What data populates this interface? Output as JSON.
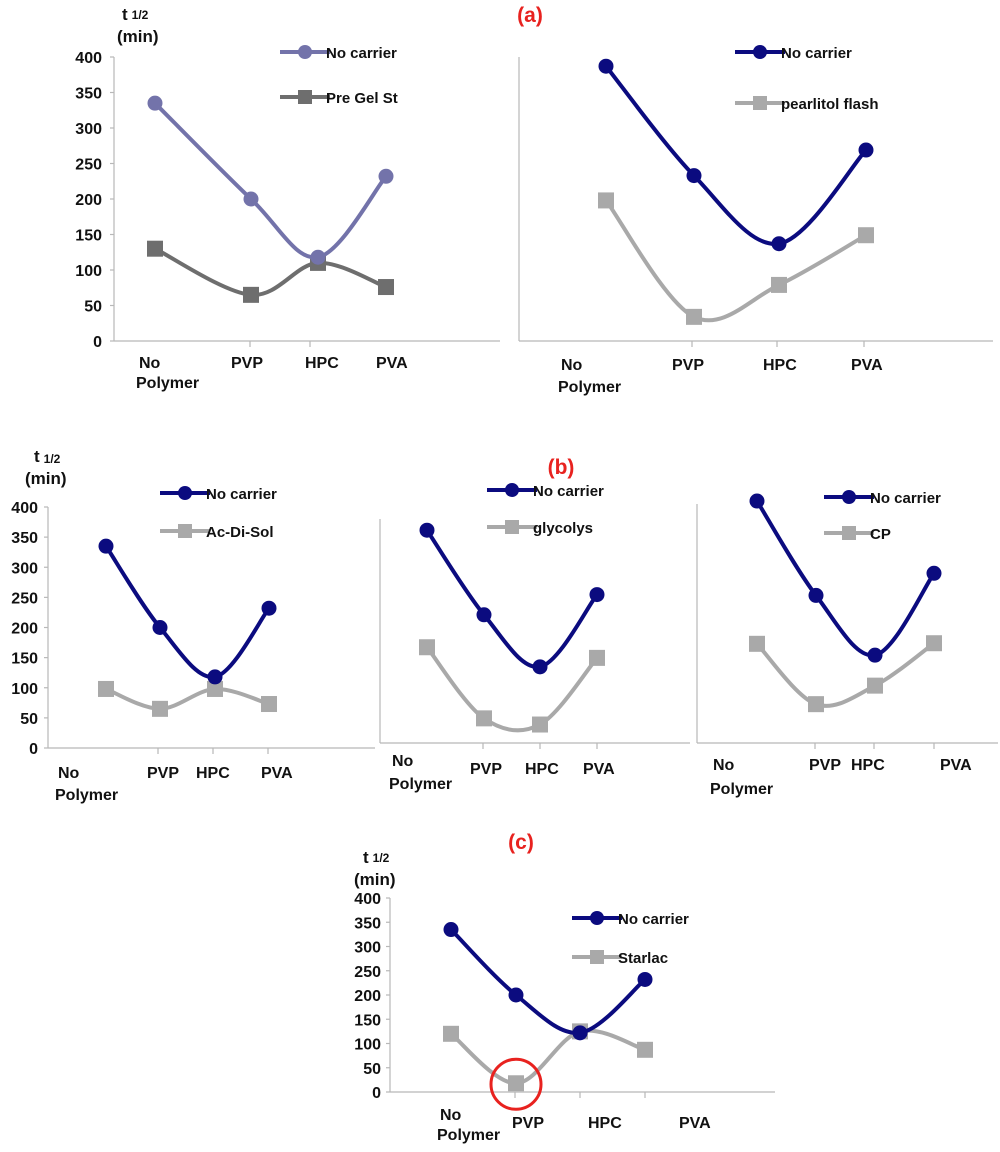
{
  "figure_labels": {
    "a": "(a)",
    "b": "(b)",
    "c": "(c)"
  },
  "y_axis_label": {
    "main": "t",
    "sub": "1/2",
    "unit": "(min)"
  },
  "tick_labels": [
    "0",
    "50",
    "100",
    "150",
    "200",
    "250",
    "300",
    "350",
    "400"
  ],
  "colors": {
    "panel_label": "#e8221f",
    "no_carrier_navy": "#0b0b7f",
    "no_carrier_lavender": "#7373aa",
    "pre_gel_st": "#6e6e6e",
    "carrier_gray": "#a9a9a9",
    "highlight_circle": "#e8221f"
  },
  "chart_data": [
    {
      "type": "line",
      "panel": "(a)",
      "categories": [
        "No Polymer",
        "PVP",
        "HPC",
        "PVA"
      ],
      "ylim": [
        0,
        400
      ],
      "series": [
        {
          "name": "No carrier",
          "values": [
            335,
            200,
            118,
            232
          ],
          "marker": "circle"
        },
        {
          "name": "Pre Gel St",
          "values": [
            130,
            65,
            110,
            76
          ],
          "marker": "square"
        }
      ]
    },
    {
      "type": "line",
      "panel": "(a)",
      "categories": [
        "No Polymer",
        "PVP",
        "HPC",
        "PVA"
      ],
      "ylim": [
        0,
        400
      ],
      "series": [
        {
          "name": "No carrier",
          "values": [
            387,
            233,
            137,
            269
          ],
          "marker": "circle"
        },
        {
          "name": "pearlitol flash",
          "values": [
            198,
            34,
            79,
            149
          ],
          "marker": "square"
        }
      ]
    },
    {
      "type": "line",
      "panel": "(b)",
      "categories": [
        "No Polymer",
        "PVP",
        "HPC",
        "PVA"
      ],
      "ylim": [
        0,
        400
      ],
      "series": [
        {
          "name": "No carrier",
          "values": [
            335,
            200,
            118,
            232
          ],
          "marker": "circle"
        },
        {
          "name": "Ac-Di-Sol",
          "values": [
            98,
            65,
            98,
            73
          ],
          "marker": "square"
        }
      ]
    },
    {
      "type": "line",
      "panel": "(b)",
      "categories": [
        "No Polymer",
        "PVP",
        "HPC",
        "PVA"
      ],
      "ylim": [
        0,
        400
      ],
      "series": [
        {
          "name": "No carrier",
          "values": [
            380,
            229,
            136,
            265
          ],
          "marker": "circle"
        },
        {
          "name": "glycolys",
          "values": [
            171,
            44,
            33,
            152
          ],
          "marker": "square"
        }
      ]
    },
    {
      "type": "line",
      "panel": "(b)",
      "categories": [
        "No Polymer",
        "PVP",
        "HPC",
        "PVA"
      ],
      "ylim": [
        0,
        400
      ],
      "series": [
        {
          "name": "No carrier",
          "values": [
            405,
            247,
            147,
            284
          ],
          "marker": "circle"
        },
        {
          "name": "CP",
          "values": [
            166,
            65,
            96,
            167
          ],
          "marker": "square"
        }
      ]
    },
    {
      "type": "line",
      "panel": "(c)",
      "categories": [
        "No Polymer",
        "PVP",
        "HPC",
        "PVA"
      ],
      "ylim": [
        0,
        400
      ],
      "series": [
        {
          "name": "No carrier",
          "values": [
            335,
            200,
            122,
            232
          ],
          "marker": "circle"
        },
        {
          "name": "Starlac",
          "values": [
            120,
            18,
            125,
            87
          ],
          "marker": "square"
        }
      ]
    }
  ]
}
